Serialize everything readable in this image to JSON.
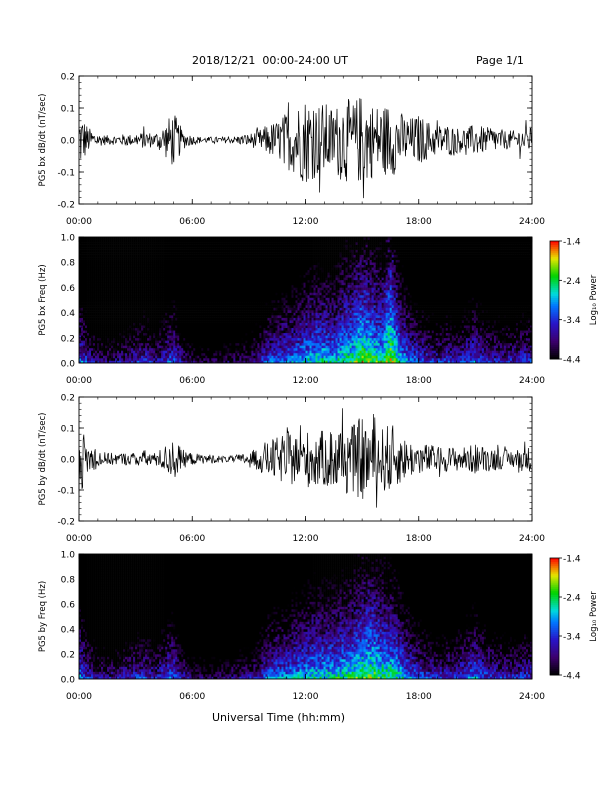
{
  "header": {
    "title": "2018/12/21  00:00-24:00 UT",
    "page": "Page 1/1"
  },
  "footer": {
    "xlabel": "Universal Time (hh:mm)"
  },
  "chart_data": [
    {
      "type": "line",
      "ylabel": "PG5 bx dB/dt (nT/sec)",
      "xlim": [
        0,
        24
      ],
      "ylim": [
        -0.2,
        0.2
      ],
      "x_ticks": [
        "00:00",
        "06:00",
        "12:00",
        "18:00",
        "24:00"
      ],
      "y_ticks": [
        "-0.2",
        "-0.1",
        "0.0",
        "0.1",
        "0.2"
      ],
      "envelope": {
        "x_hours": [
          0.0,
          0.5,
          1.0,
          1.5,
          2.0,
          2.5,
          3.0,
          3.5,
          4.0,
          4.5,
          5.0,
          5.5,
          6.0,
          6.5,
          7.0,
          7.5,
          8.0,
          8.5,
          9.0,
          9.5,
          10.0,
          10.5,
          11.0,
          11.5,
          12.0,
          12.5,
          13.0,
          13.5,
          14.0,
          14.5,
          15.0,
          15.5,
          16.0,
          16.5,
          17.0,
          17.5,
          18.0,
          18.5,
          19.0,
          19.5,
          20.0,
          20.5,
          21.0,
          21.5,
          22.0,
          22.5,
          23.0,
          23.5,
          24.0
        ],
        "amplitude": [
          0.1,
          0.04,
          0.02,
          0.015,
          0.015,
          0.02,
          0.015,
          0.03,
          0.02,
          0.05,
          0.09,
          0.03,
          0.015,
          0.01,
          0.01,
          0.01,
          0.01,
          0.015,
          0.02,
          0.03,
          0.05,
          0.06,
          0.09,
          0.11,
          0.14,
          0.12,
          0.12,
          0.1,
          0.14,
          0.12,
          0.15,
          0.12,
          0.11,
          0.12,
          0.09,
          0.07,
          0.08,
          0.06,
          0.05,
          0.05,
          0.04,
          0.04,
          0.05,
          0.04,
          0.04,
          0.03,
          0.03,
          0.04,
          0.04
        ]
      }
    },
    {
      "type": "heatmap",
      "ylabel": "PG5 bx Freq (Hz)",
      "xlim": [
        0,
        24
      ],
      "ylim": [
        0.0,
        1.0
      ],
      "x_ticks": [
        "00:00",
        "06:00",
        "12:00",
        "18:00",
        "24:00"
      ],
      "y_ticks": [
        "0.0",
        "0.2",
        "0.4",
        "0.6",
        "0.8",
        "1.0"
      ],
      "colorbar": {
        "label": "Log₁₀ Power",
        "ticks": [
          "-1.4",
          "-2.4",
          "-3.4",
          "-4.4"
        ],
        "range": [
          -4.4,
          -1.4
        ]
      },
      "intensity_profile": {
        "x_hours": [
          0.0,
          0.5,
          1.0,
          1.5,
          2.0,
          2.5,
          3.0,
          3.5,
          4.0,
          4.5,
          5.0,
          5.5,
          6.0,
          6.5,
          7.0,
          7.5,
          8.0,
          8.5,
          9.0,
          9.5,
          10.0,
          10.5,
          11.0,
          11.5,
          12.0,
          12.5,
          13.0,
          13.5,
          14.0,
          14.5,
          15.0,
          15.5,
          16.0,
          16.5,
          17.0,
          17.5,
          18.0,
          18.5,
          19.0,
          19.5,
          20.0,
          20.5,
          21.0,
          21.5,
          22.0,
          22.5,
          23.0,
          23.5,
          24.0
        ],
        "peak_log10_power": [
          -2.8,
          -3.3,
          -3.6,
          -3.7,
          -3.6,
          -3.5,
          -3.3,
          -3.2,
          -3.5,
          -3.2,
          -2.9,
          -3.5,
          -3.8,
          -3.9,
          -3.9,
          -3.9,
          -3.8,
          -3.7,
          -3.6,
          -3.4,
          -3.0,
          -2.9,
          -2.8,
          -2.7,
          -2.5,
          -2.4,
          -2.4,
          -2.5,
          -2.2,
          -2.1,
          -1.8,
          -2.0,
          -2.2,
          -1.6,
          -2.4,
          -2.8,
          -3.0,
          -3.2,
          -3.3,
          -3.2,
          -3.3,
          -3.1,
          -2.9,
          -3.2,
          -3.3,
          -3.3,
          -3.3,
          -3.2,
          -3.2
        ]
      }
    },
    {
      "type": "line",
      "ylabel": "PG5 by dB/dt (nT/sec)",
      "xlim": [
        0,
        24
      ],
      "ylim": [
        -0.2,
        0.2
      ],
      "x_ticks": [
        "00:00",
        "06:00",
        "12:00",
        "18:00",
        "24:00"
      ],
      "y_ticks": [
        "-0.2",
        "-0.1",
        "0.0",
        "0.1",
        "0.2"
      ],
      "envelope": {
        "x_hours": [
          0.0,
          0.5,
          1.0,
          1.5,
          2.0,
          2.5,
          3.0,
          3.5,
          4.0,
          4.5,
          5.0,
          5.5,
          6.0,
          6.5,
          7.0,
          7.5,
          8.0,
          8.5,
          9.0,
          9.5,
          10.0,
          10.5,
          11.0,
          11.5,
          12.0,
          12.5,
          13.0,
          13.5,
          14.0,
          14.5,
          15.0,
          15.5,
          16.0,
          16.5,
          17.0,
          17.5,
          18.0,
          18.5,
          19.0,
          19.5,
          20.0,
          20.5,
          21.0,
          21.5,
          22.0,
          22.5,
          23.0,
          23.5,
          24.0
        ],
        "amplitude": [
          0.12,
          0.05,
          0.03,
          0.02,
          0.02,
          0.02,
          0.02,
          0.03,
          0.02,
          0.04,
          0.07,
          0.03,
          0.02,
          0.015,
          0.015,
          0.01,
          0.01,
          0.015,
          0.02,
          0.04,
          0.06,
          0.07,
          0.09,
          0.08,
          0.09,
          0.1,
          0.09,
          0.11,
          0.12,
          0.11,
          0.14,
          0.1,
          0.1,
          0.12,
          0.08,
          0.06,
          0.05,
          0.05,
          0.04,
          0.04,
          0.04,
          0.04,
          0.05,
          0.04,
          0.04,
          0.03,
          0.03,
          0.04,
          0.04
        ]
      }
    },
    {
      "type": "heatmap",
      "ylabel": "PG5 by Freq (Hz)",
      "xlim": [
        0,
        24
      ],
      "ylim": [
        0.0,
        1.0
      ],
      "x_ticks": [
        "00:00",
        "06:00",
        "12:00",
        "18:00",
        "24:00"
      ],
      "y_ticks": [
        "0.0",
        "0.2",
        "0.4",
        "0.6",
        "0.8",
        "1.0"
      ],
      "colorbar": {
        "label": "Log₁₀ Power",
        "ticks": [
          "-1.4",
          "-2.4",
          "-3.4",
          "-4.4"
        ],
        "range": [
          -4.4,
          -1.4
        ]
      },
      "intensity_profile": {
        "x_hours": [
          0.0,
          0.5,
          1.0,
          1.5,
          2.0,
          2.5,
          3.0,
          3.5,
          4.0,
          4.5,
          5.0,
          5.5,
          6.0,
          6.5,
          7.0,
          7.5,
          8.0,
          8.5,
          9.0,
          9.5,
          10.0,
          10.5,
          11.0,
          11.5,
          12.0,
          12.5,
          13.0,
          13.5,
          14.0,
          14.5,
          15.0,
          15.5,
          16.0,
          16.5,
          17.0,
          17.5,
          18.0,
          18.5,
          19.0,
          19.5,
          20.0,
          20.5,
          21.0,
          21.5,
          22.0,
          22.5,
          23.0,
          23.5,
          24.0
        ],
        "peak_log10_power": [
          -2.7,
          -3.2,
          -3.5,
          -3.6,
          -3.5,
          -3.4,
          -3.2,
          -3.2,
          -3.4,
          -3.1,
          -2.9,
          -3.4,
          -3.7,
          -3.8,
          -3.8,
          -3.8,
          -3.7,
          -3.6,
          -3.5,
          -3.3,
          -2.9,
          -2.8,
          -2.8,
          -2.6,
          -2.5,
          -2.4,
          -2.4,
          -2.4,
          -2.3,
          -2.2,
          -2.0,
          -1.9,
          -2.1,
          -2.2,
          -2.4,
          -2.8,
          -3.0,
          -3.2,
          -3.3,
          -3.2,
          -3.2,
          -3.0,
          -2.8,
          -3.1,
          -3.2,
          -3.3,
          -3.3,
          -3.2,
          -3.2
        ]
      }
    }
  ]
}
